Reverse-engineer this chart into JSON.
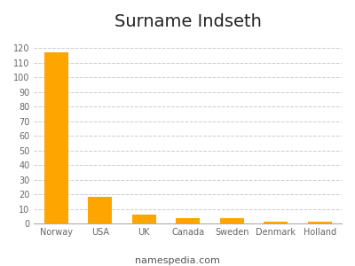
{
  "title": "Surname Indseth",
  "categories": [
    "Norway",
    "USA",
    "UK",
    "Canada",
    "Sweden",
    "Denmark",
    "Holland"
  ],
  "values": [
    117,
    18,
    6,
    4,
    4,
    1,
    1
  ],
  "bar_color": "#FFA500",
  "ylim": [
    0,
    128
  ],
  "yticks": [
    0,
    10,
    20,
    30,
    40,
    50,
    60,
    70,
    80,
    90,
    100,
    110,
    120
  ],
  "background_color": "#ffffff",
  "title_fontsize": 14,
  "tick_fontsize": 7,
  "footer_text": "namespedia.com",
  "footer_fontsize": 8,
  "grid_color": "#cccccc",
  "grid_style": "--"
}
